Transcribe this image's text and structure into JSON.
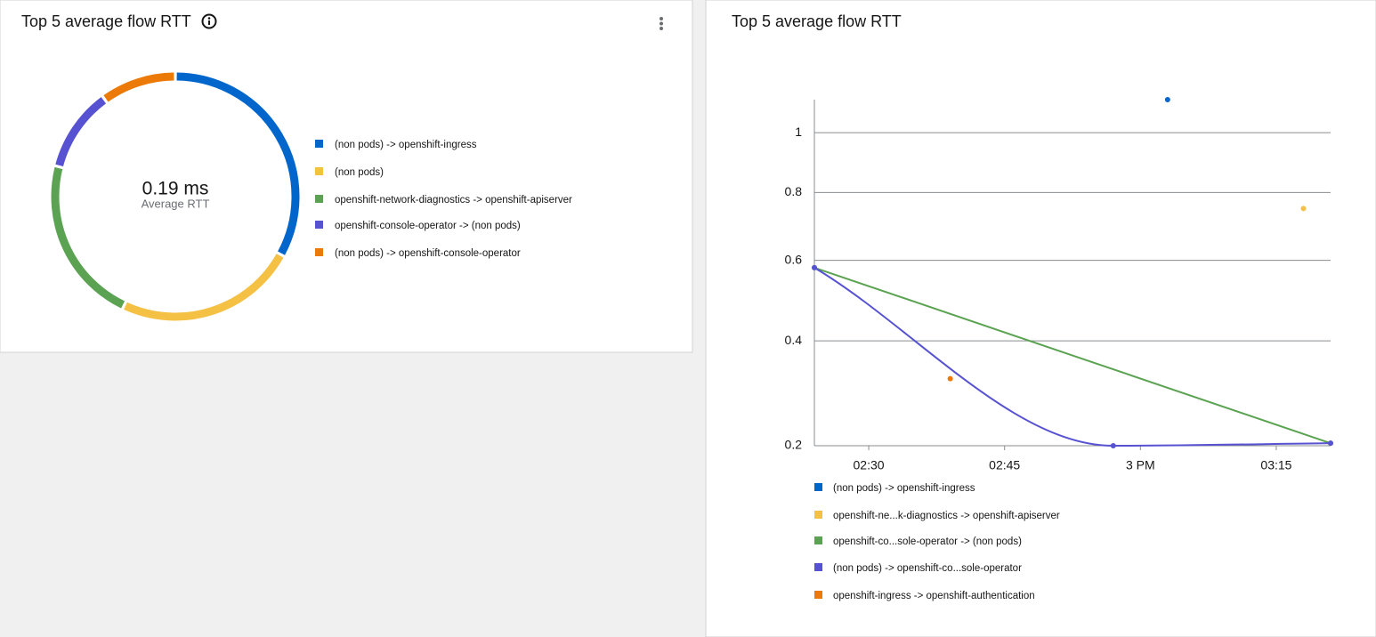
{
  "left_panel": {
    "title": "Top 5 average flow RTT",
    "donut": {
      "center_value": "0.19 ms",
      "center_label": "Average RTT",
      "segments": [
        {
          "name": "(non pods) -> openshift-ingress",
          "color": "#0066cc",
          "value": 33
        },
        {
          "name": "(non pods)",
          "color": "#f4c145",
          "value": 24
        },
        {
          "name": "openshift-network-diagnostics -> openshift-apiserver",
          "color": "#5ba352",
          "value": 22
        },
        {
          "name": "openshift-console-operator -> (non pods)",
          "color": "#5752d1",
          "value": 11
        },
        {
          "name": "(non pods) -> openshift-console-operator",
          "color": "#ec7a08",
          "value": 10
        }
      ]
    }
  },
  "right_panel": {
    "title": "Top 5 average flow RTT",
    "chart": {
      "type": "line",
      "y_scale": "sqrt",
      "grid": true,
      "xlim": [
        "14:24",
        "15:21"
      ],
      "xticks": [
        {
          "value": "14:30",
          "label": "02:30"
        },
        {
          "value": "14:45",
          "label": "02:45"
        },
        {
          "value": "15:00",
          "label": "3 PM"
        },
        {
          "value": "15:15",
          "label": "03:15"
        }
      ],
      "ylim": [
        0.2,
        1.12
      ],
      "yticks": [
        0.2,
        0.4,
        0.6,
        0.8,
        1
      ],
      "series": [
        {
          "name": "(non pods) -> openshift-ingress",
          "color": "#0066cc",
          "x": [
            "15:03"
          ],
          "values": [
            1.12
          ]
        },
        {
          "name": "openshift-ne...k-diagnostics -> openshift-apiserver",
          "color": "#f4c145",
          "x": [
            "15:18"
          ],
          "values": [
            0.75
          ]
        },
        {
          "name": "openshift-co...sole-operator -> (non pods)",
          "color": "#5ba352",
          "x": [
            "14:24",
            "15:21"
          ],
          "values": [
            0.58,
            0.204
          ]
        },
        {
          "name": "(non pods) -> openshift-co...sole-operator",
          "color": "#5752d1",
          "x": [
            "14:24",
            "14:57",
            "15:21"
          ],
          "values": [
            0.58,
            0.2,
            0.204
          ]
        },
        {
          "name": "openshift-ingress -> openshift-authentication",
          "color": "#ec7a08",
          "x": [
            "14:39"
          ],
          "values": [
            0.32
          ]
        }
      ]
    }
  }
}
